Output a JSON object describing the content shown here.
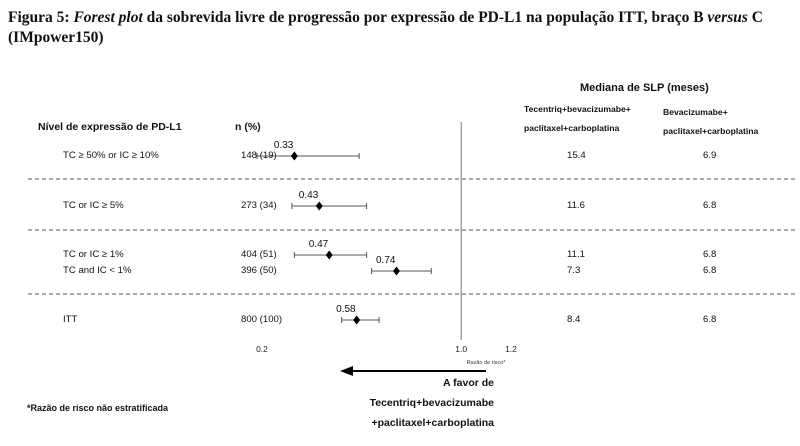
{
  "caption": {
    "prefix": "Figura 5: ",
    "italic_1": "Forest plot",
    "middle": " da sobrevida livre de progressão por expressão de PD-L1 na população ITT, braço B ",
    "italic_2": "versus",
    "suffix": " C (IMpower150)"
  },
  "headers": {
    "level": "Nível de expressão de PD-L1",
    "n": "n (%)",
    "median_title": "Mediana de SLP (meses)",
    "arm_b_line1": "Tecentriq+bevacizumabe+",
    "arm_b_line2": "paclitaxel+carboplatina",
    "arm_c_line1": "Bevacizumabe+",
    "arm_c_line2": "paclitaxel+carboplatina"
  },
  "footnote": "*Razão de risco não estratificada",
  "favor": {
    "line1": "A favor de",
    "line2": "Tecentriq+bevacizumabe",
    "line3": "+paclitaxel+carboplatina"
  },
  "chart_data": {
    "type": "forest",
    "xlabel": "Razão de risco*",
    "x_ticks": [
      "0.2",
      "1.0",
      "1.2"
    ],
    "xlim": [
      0.2,
      1.2
    ],
    "reference_line": 1.0,
    "rows": [
      {
        "label": "TC ≥ 50% or IC ≥ 10%",
        "n": "148 (19)",
        "hr": 0.33,
        "ci": [
          0.18,
          0.59
        ],
        "median_b": "15.4",
        "median_c": "6.9"
      },
      {
        "label": "TC or IC ≥ 5%",
        "n": "273 (34)",
        "hr": 0.43,
        "ci": [
          0.32,
          0.62
        ],
        "median_b": "11.6",
        "median_c": "6.8"
      },
      {
        "label": "TC or IC ≥ 1%",
        "n": "404 (51)",
        "hr": 0.47,
        "ci": [
          0.33,
          0.62
        ],
        "median_b": "11.1",
        "median_c": "6.8"
      },
      {
        "label": "TC and IC < 1%",
        "n": "396 (50)",
        "hr": 0.74,
        "ci": [
          0.64,
          0.88
        ],
        "median_b": "7.3",
        "median_c": "6.8"
      },
      {
        "label": "ITT",
        "n": "800 (100)",
        "hr": 0.58,
        "ci": [
          0.52,
          0.67
        ],
        "median_b": "8.4",
        "median_c": "6.8"
      }
    ]
  }
}
